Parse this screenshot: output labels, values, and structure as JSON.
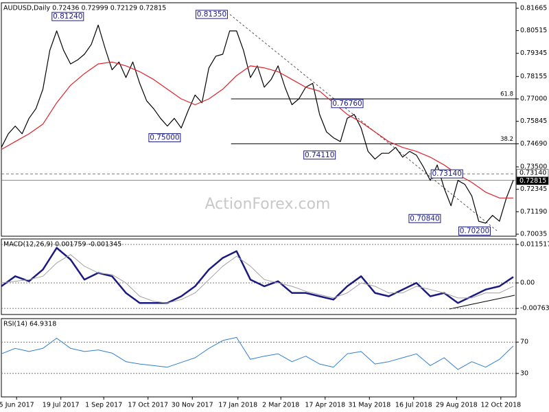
{
  "chart_data": [
    {
      "type": "line",
      "title": "AUDUSD,Daily 0.72436 0.72999 0.72129 0.72815",
      "watermark": "ActionForex.com",
      "xlim": [
        0,
        372
      ],
      "ylim": [
        0.6993,
        0.8195
      ],
      "grid": false,
      "yticks": [
        0.81665,
        0.80515,
        0.79345,
        0.78155,
        {
          "value": 0.77,
          "label": "0.77000"
        },
        0.75845,
        {
          "value": 0.7469,
          "label": "0.74690"
        },
        {
          "value": 0.735,
          "label": "0.73500"
        },
        0.72345,
        {
          "value": 0.7119,
          "label": "0.71190"
        },
        0.70035
      ],
      "series": [
        {
          "color": "#000000",
          "x": [
            0,
            5,
            10,
            15,
            20,
            25,
            30,
            35,
            40,
            45,
            50,
            55,
            60,
            65,
            70,
            75,
            80,
            85,
            90,
            95,
            100,
            105,
            110,
            115,
            120,
            125,
            130,
            135,
            140,
            145,
            150,
            155,
            160,
            165,
            170,
            175,
            180,
            185,
            190,
            195,
            200,
            205,
            210,
            215,
            220,
            225,
            230,
            235,
            240,
            245,
            250,
            255,
            260,
            265,
            270,
            275,
            280,
            285,
            290,
            295,
            300,
            305,
            310,
            315,
            320,
            325,
            330,
            335,
            340,
            345,
            350,
            355,
            360,
            365,
            370
          ],
          "values": [
            0.745,
            0.752,
            0.756,
            0.752,
            0.76,
            0.765,
            0.775,
            0.795,
            0.805,
            0.795,
            0.788,
            0.79,
            0.793,
            0.798,
            0.808,
            0.796,
            0.785,
            0.789,
            0.781,
            0.789,
            0.778,
            0.769,
            0.765,
            0.76,
            0.756,
            0.76,
            0.755,
            0.764,
            0.772,
            0.768,
            0.786,
            0.792,
            0.793,
            0.805,
            0.805,
            0.795,
            0.781,
            0.787,
            0.776,
            0.78,
            0.787,
            0.776,
            0.767,
            0.77,
            0.776,
            0.778,
            0.762,
            0.753,
            0.75,
            0.748,
            0.76,
            0.762,
            0.755,
            0.743,
            0.739,
            0.742,
            0.742,
            0.745,
            0.74,
            0.743,
            0.741,
            0.735,
            0.728,
            0.736,
            0.724,
            0.715,
            0.728,
            0.726,
            0.72,
            0.707,
            0.706,
            0.71,
            0.707,
            0.719,
            0.72815
          ]
        },
        {
          "color": "#e0202a",
          "x": [
            0,
            10,
            20,
            30,
            40,
            50,
            60,
            70,
            80,
            90,
            100,
            110,
            120,
            130,
            140,
            150,
            160,
            170,
            180,
            190,
            200,
            210,
            220,
            230,
            240,
            250,
            260,
            270,
            280,
            290,
            300,
            310,
            320,
            330,
            340,
            350,
            360,
            370
          ],
          "values": [
            0.744,
            0.748,
            0.752,
            0.757,
            0.768,
            0.777,
            0.783,
            0.788,
            0.789,
            0.787,
            0.784,
            0.78,
            0.775,
            0.77,
            0.767,
            0.77,
            0.775,
            0.782,
            0.787,
            0.786,
            0.784,
            0.78,
            0.776,
            0.774,
            0.768,
            0.762,
            0.758,
            0.753,
            0.748,
            0.745,
            0.743,
            0.74,
            0.736,
            0.731,
            0.727,
            0.722,
            0.719,
            0.719
          ]
        }
      ],
      "annotations": [
        {
          "x": 48,
          "value": 0.8124,
          "label": "0.81240"
        },
        {
          "x": 152,
          "value": 0.8135,
          "label": "0.81350"
        },
        {
          "x": 118,
          "value": 0.75,
          "label": "0.75000"
        },
        {
          "x": 250,
          "value": 0.7676,
          "label": "0.76760"
        },
        {
          "x": 230,
          "value": 0.7411,
          "label": "0.74110"
        },
        {
          "x": 322,
          "value": 0.7314,
          "label": "0.73140"
        },
        {
          "x": 306,
          "value": 0.7084,
          "label": "0.70840"
        },
        {
          "x": 342,
          "value": 0.702,
          "label": "0.70200"
        }
      ],
      "levels": [
        {
          "value": 0.77,
          "label": "61.8",
          "from": 166
        },
        {
          "value": 0.7469,
          "label": "38.2",
          "from": 166
        }
      ],
      "markers": [
        {
          "value": 0.7314,
          "label": "0.73140",
          "color": "#ffffff",
          "text_color": "#000000"
        },
        {
          "value": 0.72815,
          "label": "0.72815",
          "color": "#000000",
          "text_color": "#ffffff"
        }
      ]
    },
    {
      "type": "line",
      "title": "MACD(12,26,9) 0.001759 -0.001345",
      "xlim": [
        0,
        372
      ],
      "ylim": [
        -0.00946,
        0.01317
      ],
      "grid": true,
      "yticks": [
        0.011517,
        {
          "value": 0,
          "label": "0.00"
        },
        -0.007634
      ],
      "series": [
        {
          "color": "#1a1a80",
          "width": 2.5,
          "x": [
            0,
            10,
            20,
            30,
            40,
            50,
            60,
            70,
            80,
            90,
            100,
            110,
            120,
            130,
            140,
            150,
            160,
            170,
            180,
            190,
            200,
            210,
            220,
            230,
            240,
            250,
            260,
            270,
            280,
            290,
            300,
            310,
            320,
            330,
            340,
            350,
            360,
            370
          ],
          "values": [
            -0.001,
            0.002,
            0.0005,
            0.004,
            0.0105,
            0.007,
            0.001,
            0.003,
            0.002,
            -0.003,
            -0.006,
            -0.006,
            -0.006,
            -0.004,
            -0.001,
            0.004,
            0.0075,
            0.0095,
            0.001,
            -0.001,
            0.0005,
            -0.003,
            -0.003,
            -0.004,
            -0.005,
            -0.001,
            0.002,
            -0.003,
            -0.004,
            -0.002,
            0,
            -0.004,
            -0.003,
            -0.006,
            -0.004,
            -0.002,
            -0.001,
            0.0018
          ]
        },
        {
          "color": "#a0a0a0",
          "width": 1,
          "x": [
            0,
            10,
            20,
            30,
            40,
            50,
            60,
            70,
            80,
            90,
            100,
            110,
            120,
            130,
            140,
            150,
            160,
            170,
            180,
            190,
            200,
            210,
            220,
            230,
            240,
            250,
            260,
            270,
            280,
            290,
            300,
            310,
            320,
            330,
            340,
            350,
            360,
            370
          ],
          "values": [
            0,
            0.0005,
            0.001,
            0.002,
            0.006,
            0.0085,
            0.005,
            0.003,
            0.0025,
            0,
            -0.004,
            -0.0055,
            -0.006,
            -0.005,
            -0.003,
            0.001,
            0.005,
            0.008,
            0.005,
            0.001,
            0,
            -0.001,
            -0.0025,
            -0.0035,
            -0.0045,
            -0.003,
            0,
            -0.001,
            -0.003,
            -0.003,
            -0.001,
            -0.002,
            -0.003,
            -0.0045,
            -0.0045,
            -0.003,
            -0.003,
            -0.001
          ]
        }
      ]
    },
    {
      "type": "line",
      "title": "RSI(14) 64.9318",
      "xlim": [
        0,
        372
      ],
      "ylim": [
        0,
        100
      ],
      "grid": true,
      "yticks": [
        70,
        30
      ],
      "xticks": [
        {
          "value": 11,
          "label": "5 Jun 2017"
        },
        {
          "value": 43,
          "label": "19 Jul 2017"
        },
        {
          "value": 74,
          "label": "1 Sep 2017"
        },
        {
          "value": 106,
          "label": "17 Oct 2017"
        },
        {
          "value": 138,
          "label": "30 Nov 2017"
        },
        {
          "value": 171,
          "label": "17 Jan 2018"
        },
        {
          "value": 202,
          "label": "2 Mar 2018"
        },
        {
          "value": 234,
          "label": "17 Apr 2018"
        },
        {
          "value": 266,
          "label": "31 May 2018"
        },
        {
          "value": 298,
          "label": "16 Jul 2018"
        },
        {
          "value": 329,
          "label": "29 Aug 2018"
        },
        {
          "value": 361,
          "label": "12 Oct 2018"
        }
      ],
      "series": [
        {
          "color": "#2f7fd0",
          "width": 1,
          "x": [
            0,
            10,
            20,
            30,
            40,
            50,
            60,
            70,
            80,
            90,
            100,
            110,
            120,
            130,
            140,
            150,
            160,
            170,
            180,
            190,
            200,
            210,
            220,
            230,
            240,
            250,
            260,
            270,
            280,
            290,
            300,
            310,
            320,
            330,
            340,
            350,
            360,
            370
          ],
          "values": [
            55,
            62,
            58,
            62,
            75,
            62,
            58,
            60,
            56,
            45,
            42,
            40,
            38,
            44,
            50,
            62,
            72,
            76,
            48,
            52,
            55,
            45,
            52,
            42,
            38,
            55,
            58,
            42,
            45,
            50,
            55,
            40,
            50,
            35,
            45,
            38,
            48,
            65
          ]
        }
      ]
    }
  ]
}
